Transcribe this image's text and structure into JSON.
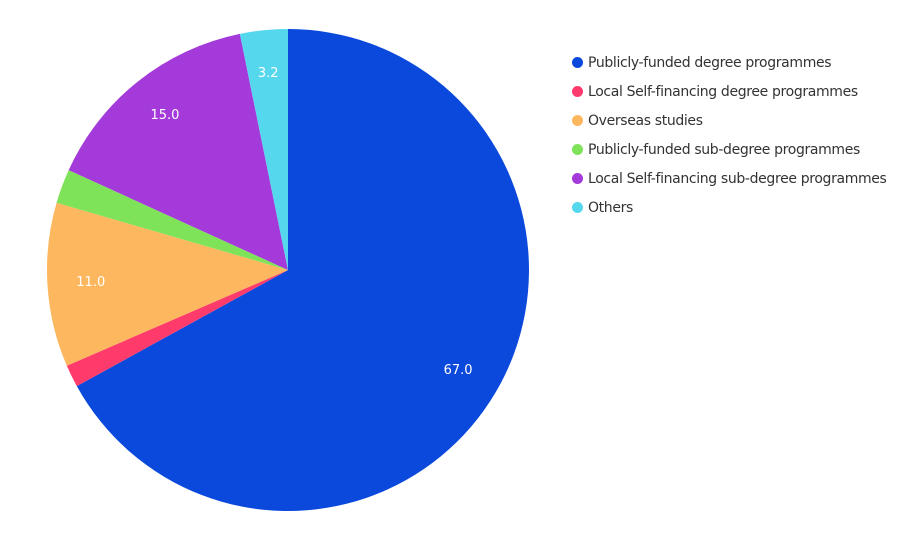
{
  "chart_data": {
    "type": "pie",
    "series": [
      {
        "name": "Publicly-funded degree programmes",
        "value": 67.0,
        "label": "67.0",
        "color": "#0b48dc"
      },
      {
        "name": "Local Self-financing degree programmes",
        "value": 1.5,
        "label": "",
        "color": "#ff3b6b"
      },
      {
        "name": "Overseas studies",
        "value": 11.0,
        "label": "11.0",
        "color": "#fdb75e"
      },
      {
        "name": "Publicly-funded sub-degree programmes",
        "value": 2.3,
        "label": "",
        "color": "#7fe35a"
      },
      {
        "name": "Local Self-financing sub-degree programmes",
        "value": 15.0,
        "label": "15.0",
        "color": "#a33ad9"
      },
      {
        "name": "Others",
        "value": 3.2,
        "label": "3.2",
        "color": "#55d8ee"
      }
    ],
    "start_angle": "12 o'clock",
    "direction": "clockwise",
    "legend_position": "right"
  }
}
